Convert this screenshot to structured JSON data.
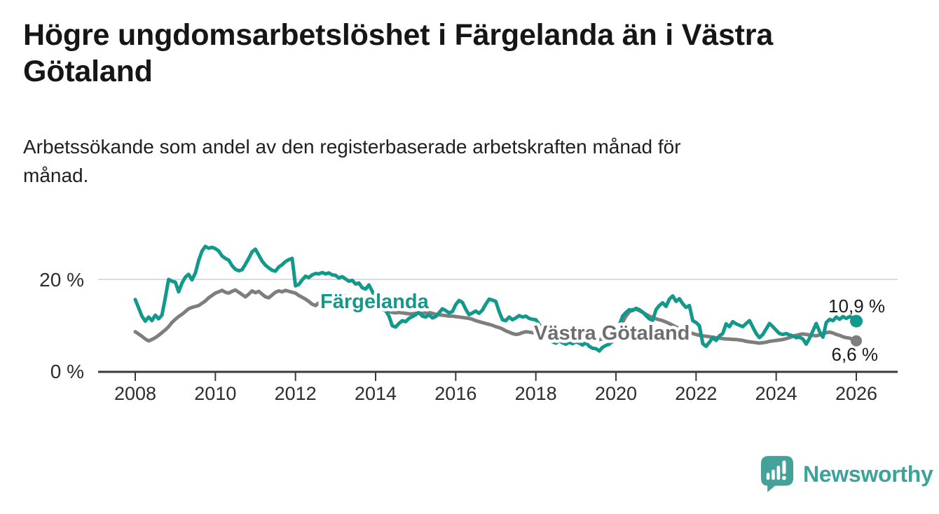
{
  "header": {
    "title_lines": [
      "Högre ungdomsarbetslöshet i Färgelanda än i Västra",
      "Götaland"
    ],
    "title": "Högre ungdomsarbetslöshet i Färgelanda än i Västra Götaland",
    "subtitle_lines": [
      "Arbetssökande som andel av den registerbaserade arbetskraften månad för",
      "månad."
    ],
    "subtitle": "Arbetssökande som andel av den registerbaserade arbetskraften månad för månad."
  },
  "footer": {
    "brand": "Newsworthy",
    "brand_color": "#3aa39a"
  },
  "chart_data": {
    "type": "line",
    "title": "Högre ungdomsarbetslöshet i Färgelanda än i Västra Götaland",
    "subtitle": "Arbetssökande som andel av den registerbaserade arbetskraften månad för månad.",
    "unit": "%",
    "grid": "horizontal-only",
    "legend_position": "inline-labels",
    "x_axis": {
      "tick_values": [
        2008,
        2010,
        2012,
        2014,
        2016,
        2018,
        2020,
        2022,
        2024,
        2026
      ],
      "tick_labels": [
        "2008",
        "2010",
        "2012",
        "2014",
        "2016",
        "2018",
        "2020",
        "2022",
        "2024",
        "2026"
      ],
      "data_range": [
        2008.0,
        2026.0
      ]
    },
    "y_axis": {
      "tick_values": [
        0,
        20
      ],
      "tick_labels": [
        "0 %",
        "20 %"
      ],
      "gridline_values": [
        20
      ],
      "range": [
        0,
        28
      ]
    },
    "series": [
      {
        "name": "Färgelanda",
        "color": "#12998c",
        "label_color": "#12998c",
        "start_year": 2008,
        "step_months": 1,
        "end_value": 10.9,
        "end_label": "10,9 %",
        "values": [
          15.6,
          13.8,
          12.0,
          10.9,
          11.8,
          11.0,
          12.2,
          11.4,
          12.2,
          16.0,
          20.0,
          19.6,
          19.4,
          17.3,
          19.2,
          20.5,
          21.1,
          19.9,
          21.4,
          24.1,
          26.2,
          27.2,
          26.8,
          27.0,
          26.7,
          26.2,
          25.1,
          24.6,
          24.2,
          23.0,
          22.2,
          21.9,
          22.1,
          23.3,
          24.6,
          26.0,
          26.6,
          25.3,
          24.0,
          23.1,
          22.5,
          22.0,
          21.8,
          22.7,
          23.2,
          23.9,
          24.3,
          24.6,
          18.6,
          18.9,
          19.9,
          20.7,
          20.4,
          21.0,
          21.3,
          21.2,
          21.5,
          21.2,
          21.4,
          21.0,
          20.9,
          20.3,
          20.6,
          20.1,
          19.6,
          19.8,
          19.0,
          19.2,
          18.2,
          17.9,
          18.8,
          17.4,
          15.8,
          14.2,
          13.6,
          13.2,
          12.0,
          9.9,
          9.6,
          10.4,
          11.0,
          10.8,
          11.5,
          11.9,
          12.3,
          12.8,
          12.0,
          11.8,
          12.3,
          11.6,
          11.9,
          12.7,
          13.6,
          13.2,
          12.7,
          13.0,
          14.5,
          15.4,
          15.0,
          13.5,
          12.3,
          12.7,
          13.1,
          12.6,
          13.3,
          14.6,
          15.7,
          15.5,
          15.2,
          13.0,
          11.2,
          11.0,
          11.8,
          11.2,
          11.6,
          12.1,
          11.8,
          12.0,
          11.5,
          11.3,
          11.2,
          10.2,
          9.0,
          8.0,
          7.2,
          6.4,
          6.1,
          6.6,
          6.2,
          5.9,
          6.3,
          6.0,
          6.4,
          6.1,
          5.7,
          6.2,
          5.4,
          5.0,
          4.9,
          4.4,
          5.2,
          5.6,
          5.9,
          6.5,
          7.4,
          10.0,
          12.0,
          12.8,
          13.4,
          13.2,
          13.7,
          13.4,
          12.9,
          12.1,
          11.4,
          11.1,
          13.4,
          14.3,
          14.9,
          14.1,
          15.7,
          16.4,
          15.2,
          15.8,
          14.7,
          13.9,
          14.3,
          11.0,
          10.6,
          9.9,
          6.0,
          5.4,
          6.3,
          7.3,
          6.7,
          7.7,
          8.2,
          10.3,
          9.7,
          10.8,
          10.3,
          10.0,
          9.7,
          10.4,
          11.0,
          9.6,
          8.2,
          7.3,
          8.0,
          9.2,
          10.4,
          9.7,
          8.9,
          8.2,
          8.0,
          8.2,
          7.9,
          7.7,
          7.3,
          7.4,
          7.0,
          5.9,
          7.2,
          8.8,
          10.4,
          8.6,
          7.4,
          10.6,
          11.3,
          11.0,
          11.8,
          11.3,
          11.9,
          11.5,
          11.9,
          11.6,
          10.9
        ]
      },
      {
        "name": "Västra Götaland",
        "color": "#7e7e7e",
        "label_color": "#6e6e6e",
        "start_year": 2008,
        "step_months": 1,
        "end_value": 6.6,
        "end_label": "6,6 %",
        "values": [
          8.6,
          8.1,
          7.6,
          7.0,
          6.6,
          6.9,
          7.3,
          7.8,
          8.4,
          9.0,
          9.7,
          10.6,
          11.3,
          11.9,
          12.4,
          13.0,
          13.6,
          13.9,
          14.1,
          14.3,
          14.8,
          15.3,
          16.0,
          16.5,
          17.0,
          17.3,
          17.6,
          17.2,
          17.0,
          17.4,
          17.7,
          17.2,
          16.7,
          16.2,
          16.8,
          17.5,
          17.1,
          17.4,
          16.8,
          16.2,
          16.0,
          16.6,
          17.2,
          17.5,
          17.3,
          17.6,
          17.4,
          17.2,
          17.0,
          16.5,
          16.1,
          15.7,
          15.2,
          14.6,
          14.3,
          14.9,
          15.3,
          15.6,
          15.4,
          15.7,
          16.0,
          16.3,
          16.1,
          16.4,
          16.2,
          15.9,
          16.1,
          15.8,
          15.5,
          15.2,
          14.9,
          14.4,
          14.0,
          13.8,
          13.5,
          13.2,
          13.0,
          12.8,
          12.7,
          12.8,
          12.7,
          12.6,
          12.5,
          12.5,
          12.6,
          12.7,
          12.6,
          12.7,
          12.8,
          12.6,
          12.4,
          12.3,
          12.2,
          12.1,
          12.0,
          12.0,
          11.9,
          11.8,
          11.7,
          11.6,
          11.5,
          11.3,
          11.0,
          10.8,
          10.6,
          10.4,
          10.2,
          10.0,
          9.7,
          9.5,
          9.2,
          8.8,
          8.5,
          8.2,
          8.0,
          8.1,
          8.4,
          8.6,
          8.5,
          8.4,
          8.3,
          8.1,
          7.9,
          7.8,
          7.7,
          7.6,
          7.5,
          7.5,
          7.4,
          7.3,
          7.3,
          7.2,
          7.2,
          7.1,
          7.1,
          7.0,
          7.0,
          7.0,
          6.9,
          6.9,
          7.0,
          7.1,
          7.2,
          7.4,
          7.8,
          9.0,
          10.7,
          12.0,
          12.9,
          13.4,
          13.5,
          13.2,
          12.8,
          12.4,
          12.0,
          11.7,
          11.4,
          11.2,
          11.0,
          10.7,
          10.4,
          10.0,
          9.6,
          9.3,
          9.0,
          8.7,
          8.4,
          8.2,
          8.0,
          7.8,
          7.7,
          7.6,
          7.5,
          7.4,
          7.3,
          7.2,
          7.1,
          7.0,
          7.0,
          6.9,
          6.9,
          6.8,
          6.7,
          6.5,
          6.4,
          6.3,
          6.2,
          6.1,
          6.2,
          6.3,
          6.5,
          6.6,
          6.7,
          6.8,
          6.9,
          7.1,
          7.3,
          7.6,
          7.8,
          8.0,
          8.1,
          8.0,
          7.9,
          7.8,
          7.7,
          7.9,
          8.1,
          8.4,
          8.5,
          8.3,
          8.0,
          7.8,
          7.5,
          7.3,
          7.2,
          6.9,
          6.6
        ]
      }
    ]
  }
}
